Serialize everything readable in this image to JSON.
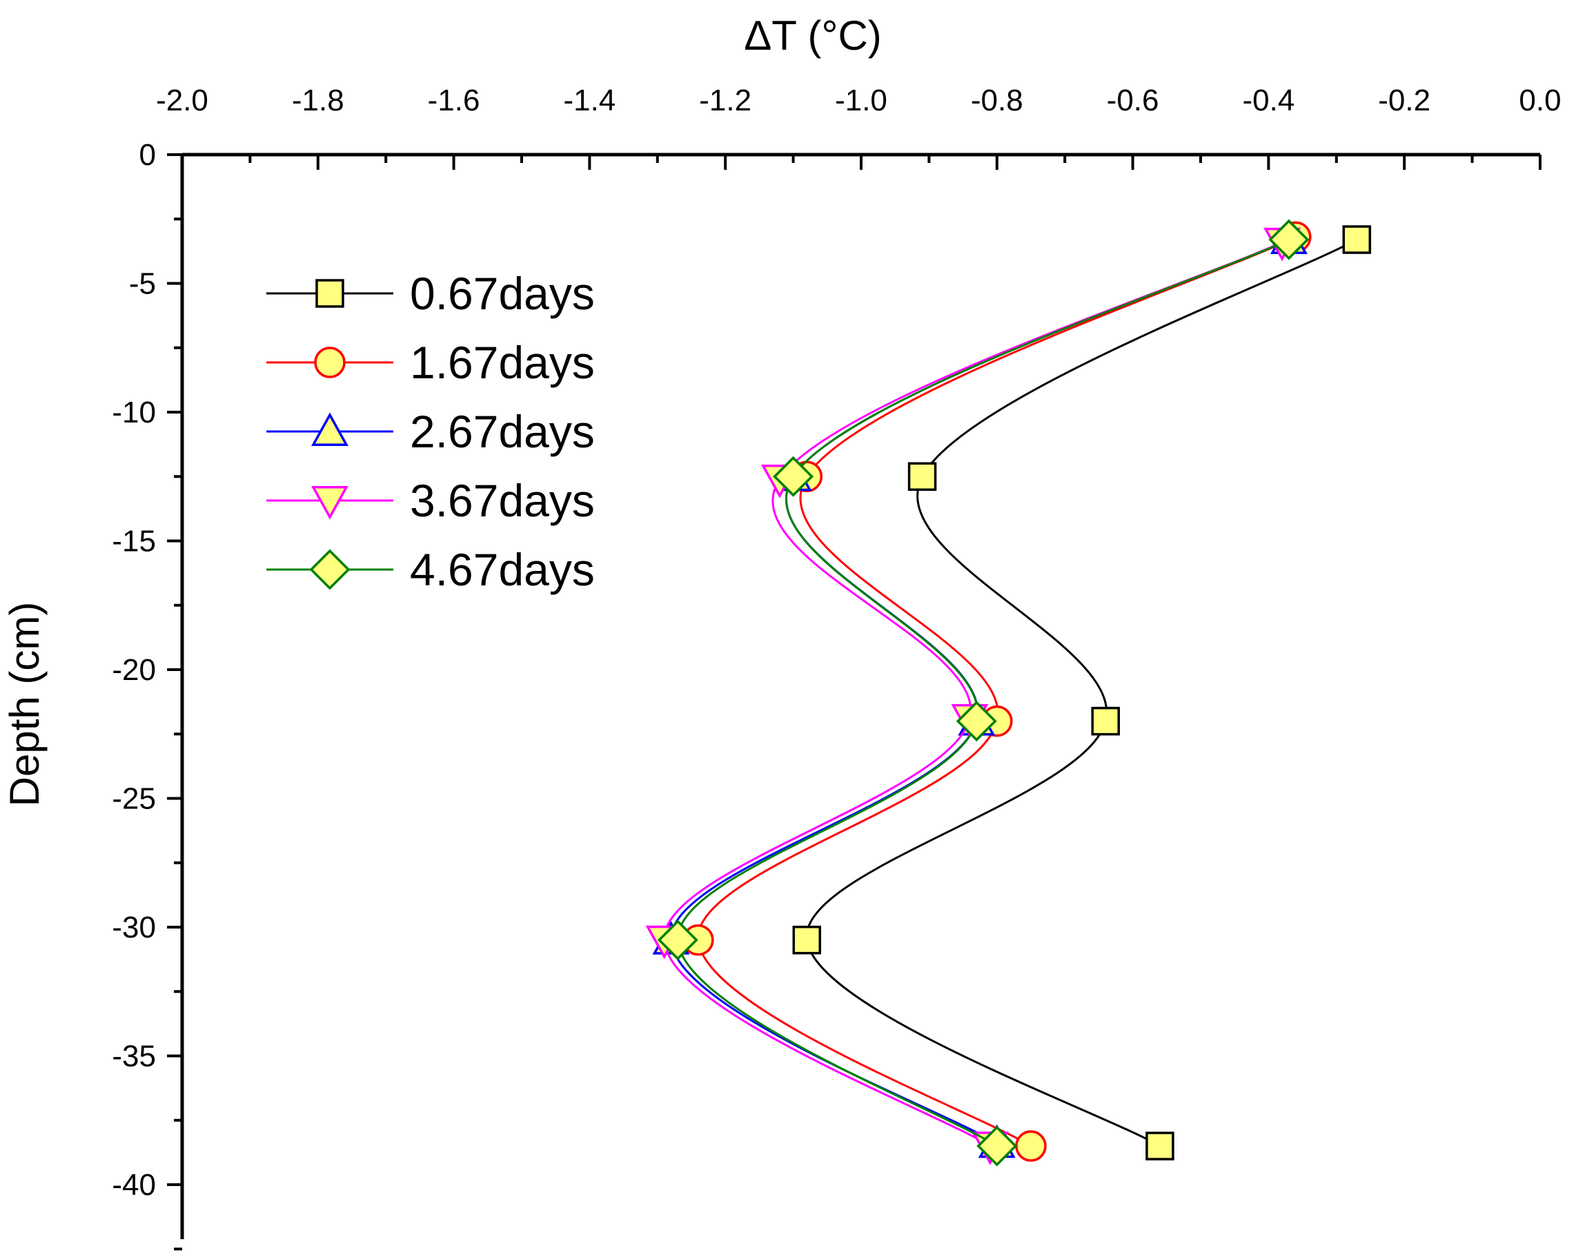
{
  "chart_data": {
    "type": "line",
    "title": "",
    "xlabel": "ΔT (°C)",
    "ylabel": "Depth (cm)",
    "x_axis_position": "top",
    "xlim": [
      -2.0,
      0.0
    ],
    "ylim": [
      -42.5,
      0
    ],
    "x_ticks": [
      {
        "value": -2.0,
        "label": "-2.0"
      },
      {
        "value": -1.8,
        "label": "-1.8"
      },
      {
        "value": -1.6,
        "label": "-1.6"
      },
      {
        "value": -1.4,
        "label": "-1.4"
      },
      {
        "value": -1.2,
        "label": "-1.2"
      },
      {
        "value": -1.0,
        "label": "-1.0"
      },
      {
        "value": -0.8,
        "label": "-0.8"
      },
      {
        "value": -0.6,
        "label": "-0.6"
      },
      {
        "value": -0.4,
        "label": "-0.4"
      },
      {
        "value": -0.2,
        "label": "-0.2"
      },
      {
        "value": 0.0,
        "label": "0.0"
      }
    ],
    "y_ticks": [
      {
        "value": 0,
        "label": "0"
      },
      {
        "value": -5,
        "label": "-5"
      },
      {
        "value": -10,
        "label": "-10"
      },
      {
        "value": -15,
        "label": "-15"
      },
      {
        "value": -20,
        "label": "-20"
      },
      {
        "value": -25,
        "label": "-25"
      },
      {
        "value": -30,
        "label": "-30"
      },
      {
        "value": -35,
        "label": "-35"
      },
      {
        "value": -40,
        "label": "-40"
      }
    ],
    "grid": false,
    "legend_position": "top-left",
    "series": [
      {
        "name": "0.67days",
        "color": "#000000",
        "marker": "square",
        "points": [
          [
            -0.27,
            -3.3
          ],
          [
            -0.91,
            -12.5
          ],
          [
            -0.64,
            -22.0
          ],
          [
            -1.08,
            -30.5
          ],
          [
            -0.56,
            -38.5
          ]
        ]
      },
      {
        "name": "1.67days",
        "color": "#ff0000",
        "marker": "circle",
        "points": [
          [
            -0.36,
            -3.2
          ],
          [
            -1.08,
            -12.5
          ],
          [
            -0.8,
            -22.0
          ],
          [
            -1.24,
            -30.5
          ],
          [
            -0.75,
            -38.5
          ]
        ]
      },
      {
        "name": "2.67days",
        "color": "#0000ff",
        "marker": "triangle-up",
        "points": [
          [
            -0.37,
            -3.3
          ],
          [
            -1.1,
            -12.5
          ],
          [
            -0.83,
            -22.0
          ],
          [
            -1.28,
            -30.5
          ],
          [
            -0.8,
            -38.4
          ]
        ]
      },
      {
        "name": "3.67days",
        "color": "#ff00ff",
        "marker": "triangle-down",
        "points": [
          [
            -0.38,
            -3.4
          ],
          [
            -1.12,
            -12.6
          ],
          [
            -0.84,
            -21.9
          ],
          [
            -1.29,
            -30.5
          ],
          [
            -0.81,
            -38.5
          ]
        ]
      },
      {
        "name": "4.67days",
        "color": "#008000",
        "marker": "diamond",
        "points": [
          [
            -0.37,
            -3.3
          ],
          [
            -1.1,
            -12.5
          ],
          [
            -0.83,
            -22.0
          ],
          [
            -1.27,
            -30.5
          ],
          [
            -0.8,
            -38.5
          ]
        ]
      }
    ],
    "marker_fill": "#ffff80"
  }
}
